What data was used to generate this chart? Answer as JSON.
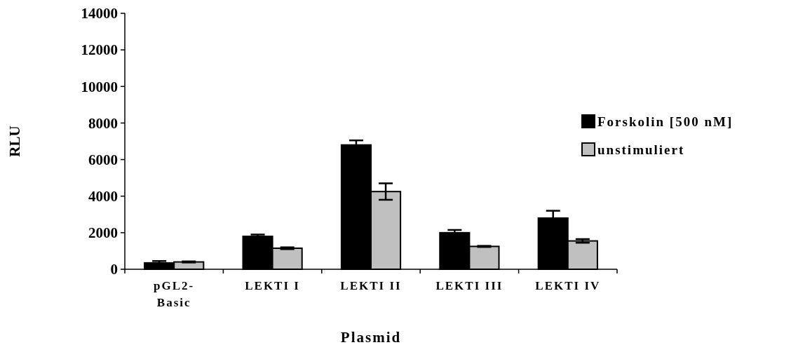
{
  "chart_data": {
    "type": "bar",
    "xlabel": "Plasmid",
    "ylabel": "RLU",
    "categories": [
      "pGL2-Basic",
      "LEKTI I",
      "LEKTI II",
      "LEKTI III",
      "LEKTI IV"
    ],
    "series": [
      {
        "name": "Forskolin [500 nM]",
        "color": "#000000",
        "values": [
          350,
          1800,
          6800,
          2000,
          2800
        ],
        "errors": [
          100,
          100,
          250,
          150,
          400
        ]
      },
      {
        "name": "unstimuliert",
        "color": "#c0c0c0",
        "values": [
          400,
          1150,
          4250,
          1250,
          1550
        ],
        "errors": [
          30,
          50,
          450,
          30,
          100
        ]
      }
    ],
    "ylim": [
      0,
      14000
    ],
    "yticks": [
      0,
      2000,
      4000,
      6000,
      8000,
      10000,
      12000,
      14000
    ],
    "legend": "right",
    "grid": false
  }
}
